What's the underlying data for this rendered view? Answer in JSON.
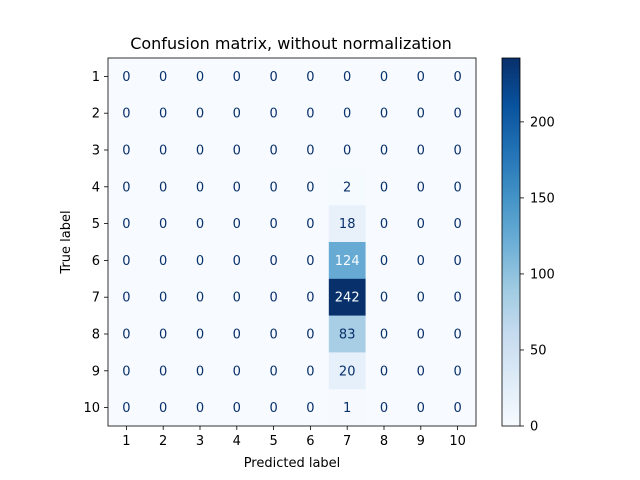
{
  "chart_data": {
    "type": "heatmap",
    "title": "Confusion matrix, without normalization",
    "xlabel": "Predicted label",
    "ylabel": "True label",
    "x_categories": [
      "1",
      "2",
      "3",
      "4",
      "5",
      "6",
      "7",
      "8",
      "9",
      "10"
    ],
    "y_categories": [
      "1",
      "2",
      "3",
      "4",
      "5",
      "6",
      "7",
      "8",
      "9",
      "10"
    ],
    "values": [
      [
        0,
        0,
        0,
        0,
        0,
        0,
        0,
        0,
        0,
        0
      ],
      [
        0,
        0,
        0,
        0,
        0,
        0,
        0,
        0,
        0,
        0
      ],
      [
        0,
        0,
        0,
        0,
        0,
        0,
        0,
        0,
        0,
        0
      ],
      [
        0,
        0,
        0,
        0,
        0,
        0,
        2,
        0,
        0,
        0
      ],
      [
        0,
        0,
        0,
        0,
        0,
        0,
        18,
        0,
        0,
        0
      ],
      [
        0,
        0,
        0,
        0,
        0,
        0,
        124,
        0,
        0,
        0
      ],
      [
        0,
        0,
        0,
        0,
        0,
        0,
        242,
        0,
        0,
        0
      ],
      [
        0,
        0,
        0,
        0,
        0,
        0,
        83,
        0,
        0,
        0
      ],
      [
        0,
        0,
        0,
        0,
        0,
        0,
        20,
        0,
        0,
        0
      ],
      [
        0,
        0,
        0,
        0,
        0,
        0,
        1,
        0,
        0,
        0
      ]
    ],
    "colormap": "Blues",
    "colorbar": {
      "range": [
        0,
        242
      ],
      "ticks": [
        0,
        50,
        100,
        150,
        200
      ]
    },
    "grid": false,
    "colors": {
      "low": "#f7fbff",
      "high": "#08306b",
      "text_dark": "#08306b",
      "text_light": "#f7fbff"
    }
  }
}
